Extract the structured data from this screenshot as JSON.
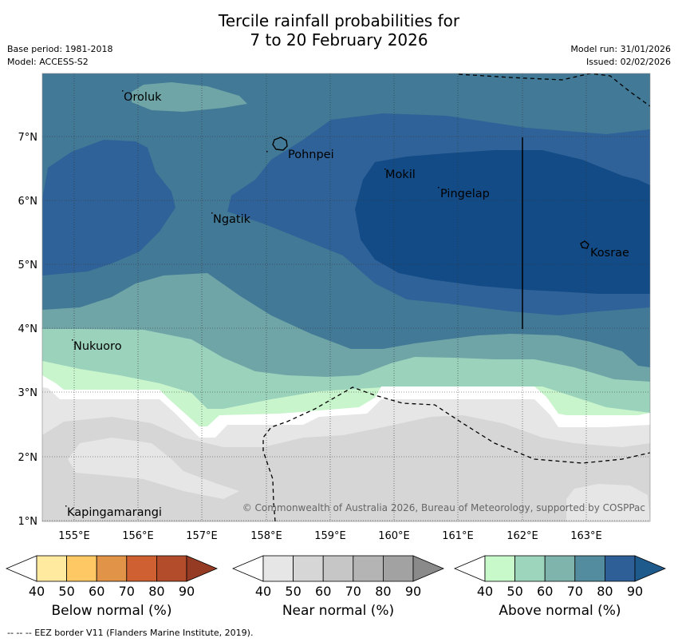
{
  "header": {
    "title_line1": "Tercile rainfall probabilities for",
    "title_line2": "7 to 20 February 2026",
    "base_period": "Base period: 1981-2018",
    "model": "Model: ACCESS-S2",
    "model_run": "Model run: 31/01/2026",
    "issued": "Issued: 02/02/2026"
  },
  "map": {
    "x_ticks": [
      "155°E",
      "156°E",
      "157°E",
      "158°E",
      "159°E",
      "160°E",
      "161°E",
      "162°E",
      "163°E"
    ],
    "y_ticks": [
      "7°N",
      "6°N",
      "5°N",
      "4°N",
      "3°N",
      "2°N",
      "1°N"
    ],
    "places": [
      "Oroluk",
      "Pohnpei",
      "Mokil",
      "Pingelap",
      "Ngatik",
      "Kosrae",
      "Nukuoro",
      "Kapingamarangi"
    ],
    "copyright": "© Commonwealth of Australia 2026, Bureau of Meteorology, supported by COSPPac",
    "colors": {
      "above_50": "#c8f5cb",
      "above_60": "#9bd2bc",
      "above_70": "#6fa5a6",
      "above_80": "#427996",
      "above_90": "#2f6298",
      "above_max": "#134b86",
      "near_50": "#e6e6e6",
      "near_60": "#d6d6d6"
    }
  },
  "colorbars": {
    "below": {
      "title": "Below normal (%)",
      "ticks": [
        "40",
        "50",
        "60",
        "70",
        "80",
        "90"
      ],
      "colors": [
        "#ffffff",
        "#ffeaa0",
        "#fec964",
        "#e19347",
        "#cf6031",
        "#b24c2a",
        "#963b23"
      ]
    },
    "near": {
      "title": "Near normal (%)",
      "ticks": [
        "40",
        "50",
        "60",
        "70",
        "80",
        "90"
      ],
      "colors": [
        "#ffffff",
        "#e6e6e6",
        "#d6d6d6",
        "#c6c6c6",
        "#b4b4b4",
        "#a2a2a2",
        "#8a8a8a"
      ]
    },
    "above": {
      "title": "Above normal (%)",
      "ticks": [
        "40",
        "50",
        "60",
        "70",
        "80",
        "90"
      ],
      "colors": [
        "#ffffff",
        "#c8f9cb",
        "#9cd5bb",
        "#7fb4ad",
        "#538c9e",
        "#2e5f96",
        "#1e5a8c"
      ]
    }
  },
  "footer": {
    "eez_note": "--  --  -- EEZ border V11 (Flanders Marine Institute, 2019)."
  }
}
